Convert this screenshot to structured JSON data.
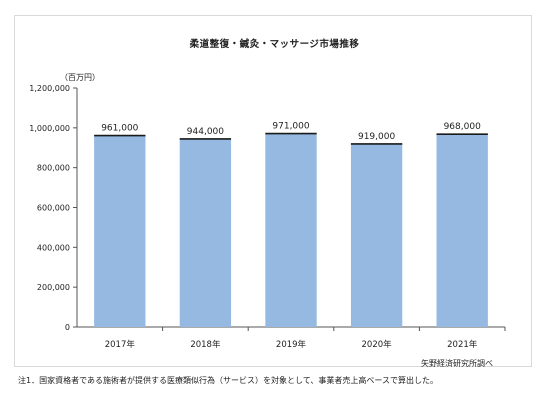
{
  "title": "柔道整復・鍼灸・マッサージ市場推移",
  "unit": "（百万円）",
  "source": "矢野経済研究所調べ",
  "footnote": "注1．国家資格者である施術者が提供する医療類似行為（サービス）を対象として、事業者売上高ベースで算出した。",
  "colors": {
    "bar_fill": "#95b9e0",
    "bar_top": "#1a1a1a",
    "axis": "#555555"
  },
  "chart_data": {
    "type": "bar",
    "title": "柔道整復・鍼灸・マッサージ市場推移",
    "ylabel": "（百万円）",
    "xlabel": "",
    "categories": [
      "2017年",
      "2018年",
      "2019年",
      "2020年",
      "2021年"
    ],
    "values": [
      961000,
      944000,
      971000,
      919000,
      968000
    ],
    "data_labels": [
      "961,000",
      "944,000",
      "971,000",
      "919,000",
      "968,000"
    ],
    "ylim": [
      0,
      1200000
    ],
    "yticks": [
      0,
      200000,
      400000,
      600000,
      800000,
      1000000,
      1200000
    ],
    "ytick_labels": [
      "0",
      "200,000",
      "400,000",
      "600,000",
      "800,000",
      "1,000,000",
      "1,200,000"
    ],
    "grid": false,
    "legend": "none"
  }
}
